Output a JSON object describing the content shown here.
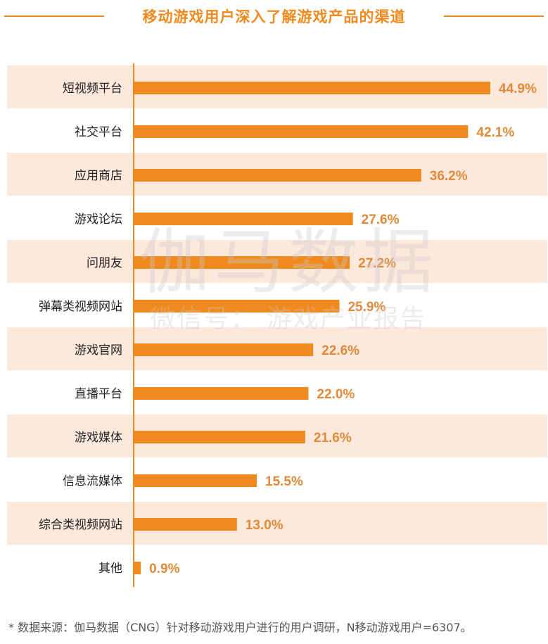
{
  "title": "移动游戏用户深入了解游戏产品的渠道",
  "colors": {
    "accent": "#f08a1e",
    "bar": "#f08a1e",
    "band": "#fde9dc",
    "label": "#e08a3a"
  },
  "chart_data": {
    "type": "bar",
    "orientation": "horizontal",
    "categories": [
      "短视频平台",
      "社交平台",
      "应用商店",
      "游戏论坛",
      "问朋友",
      "弹幕类视频网站",
      "游戏官网",
      "直播平台",
      "游戏媒体",
      "信息流媒体",
      "综合类视频网站",
      "其他"
    ],
    "values": [
      44.9,
      42.1,
      36.2,
      27.6,
      27.2,
      25.9,
      22.6,
      22.0,
      21.6,
      15.5,
      13.0,
      0.9
    ],
    "value_labels": [
      "44.9%",
      "42.1%",
      "36.2%",
      "27.6%",
      "27.2%",
      "25.9%",
      "22.6%",
      "22.0%",
      "21.6%",
      "15.5%",
      "13.0%",
      "0.9%"
    ],
    "title": "移动游戏用户深入了解游戏产品的渠道",
    "xlim": [
      0,
      50
    ],
    "grid": false,
    "legend": "none"
  },
  "watermark": {
    "line1": "伽马数据",
    "line2": "微信号： 游戏产业报告"
  },
  "source": "*  数据来源：伽马数据（CNG）针对移动游戏用户进行的用户调研，N移动游戏用户=6307。"
}
